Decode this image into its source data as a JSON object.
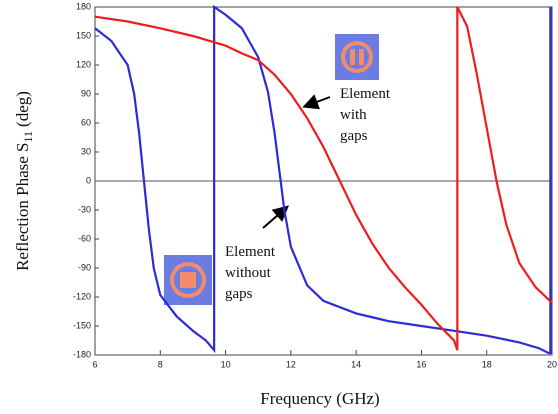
{
  "chart_data": {
    "type": "line",
    "xlabel": "Frequency (GHz)",
    "ylabel": {
      "text": "Reflection Phase S",
      "sub": "11",
      "unit": "(deg)"
    },
    "xlim": [
      6,
      20
    ],
    "xticks": [
      6,
      8,
      10,
      12,
      14,
      16,
      18,
      20
    ],
    "ylim": [
      -180,
      180
    ],
    "yticks": [
      -180,
      -150,
      -120,
      -90,
      -60,
      -30,
      0,
      30,
      60,
      90,
      120,
      150,
      180
    ],
    "zero_line": true,
    "annotations": [
      {
        "lines": [
          "Element",
          "with",
          "gaps"
        ]
      },
      {
        "lines": [
          "Element",
          "without",
          "gaps"
        ]
      }
    ],
    "series": [
      {
        "color": "#2b2bd9",
        "x": [
          6,
          6.5,
          7,
          7.2,
          7.35,
          7.5,
          7.65,
          7.8,
          8,
          8.5,
          9,
          9.4,
          9.65,
          9.65,
          10,
          10.5,
          11,
          11.3,
          11.5,
          11.65,
          11.8,
          12,
          12.5,
          13,
          14,
          15,
          16,
          17,
          18,
          19,
          19.6,
          19.9,
          19.95,
          19.95
        ],
        "values": [
          158,
          145,
          120,
          90,
          50,
          0,
          -50,
          -90,
          -118,
          -140,
          -155,
          -165,
          -175,
          180,
          172,
          158,
          128,
          92,
          50,
          10,
          -30,
          -68,
          -108,
          -124,
          -137,
          -145,
          -150,
          -155,
          -160,
          -167,
          -173,
          -178,
          -178,
          180
        ]
      },
      {
        "color": "#ee1c1c",
        "x": [
          6,
          7,
          8,
          9,
          10,
          10.5,
          11,
          11.5,
          12,
          12.5,
          13,
          13.5,
          14,
          14.5,
          15,
          15.5,
          16,
          16.5,
          17,
          17.1,
          17.1,
          17.4,
          17.7,
          18,
          18.3,
          18.6,
          19,
          19.5,
          20
        ],
        "values": [
          170,
          165,
          158,
          150,
          140,
          132,
          125,
          110,
          90,
          65,
          35,
          0,
          -35,
          -65,
          -90,
          -110,
          -128,
          -148,
          -165,
          -175,
          180,
          160,
          110,
          55,
          0,
          -45,
          -85,
          -110,
          -126
        ]
      }
    ]
  }
}
